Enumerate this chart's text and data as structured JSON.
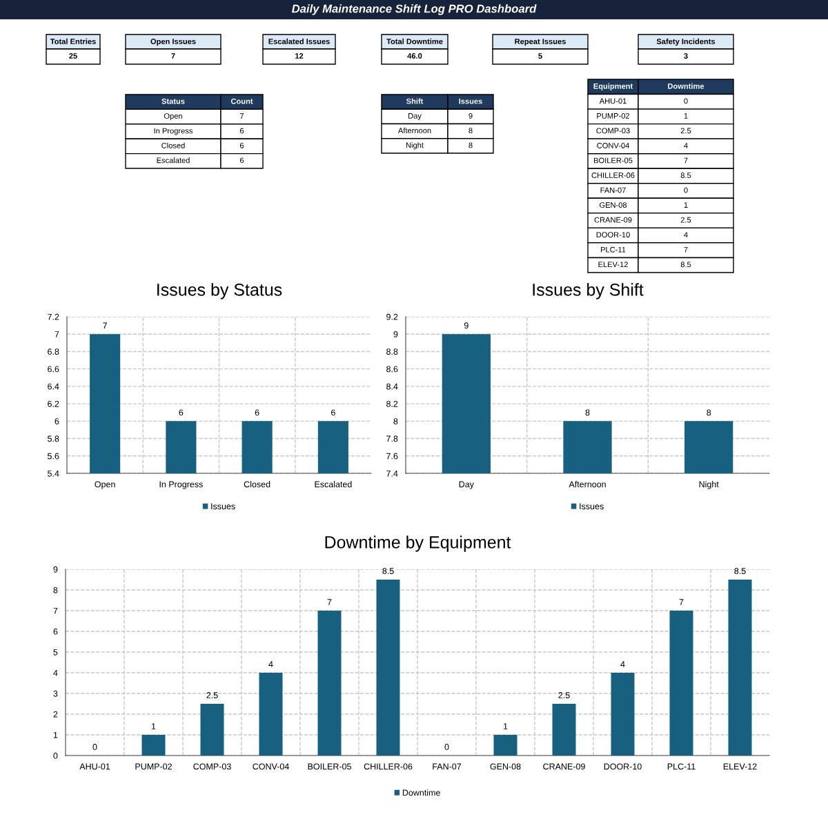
{
  "chart_data": [
    {
      "type": "other",
      "title": "Daily Maintenance Shift Log PRO Dashboard",
      "annotations": [
        "Total Entries",
        "25",
        "Open Issues",
        "7",
        "Escalated Issues",
        "12",
        "Total Downtime",
        "46.0",
        "Repeat Issues",
        "5",
        "Safety Incidents",
        "3"
      ]
    },
    {
      "type": "other",
      "annotations": [
        "Status",
        "Count",
        "Open",
        "7",
        "In Progress",
        "6",
        "Closed",
        "6",
        "Escalated",
        "6"
      ]
    },
    {
      "type": "other",
      "annotations": [
        "Shift",
        "Issues",
        "Day",
        "9",
        "Afternoon",
        "8",
        "Night",
        "8"
      ]
    },
    {
      "type": "other",
      "annotations": [
        "Equipment",
        "Downtime",
        "AHU-01",
        "0",
        "PUMP-02",
        "1",
        "COMP-03",
        "2.5",
        "CONV-04",
        "4",
        "BOILER-05",
        "7",
        "CHILLER-06",
        "8.5",
        "FAN-07",
        "0",
        "GEN-08",
        "1",
        "CRANE-09",
        "2.5",
        "DOOR-10",
        "4",
        "PLC-11",
        "7",
        "ELEV-12",
        "8.5"
      ]
    },
    {
      "type": "bar",
      "title": "Issues by Status",
      "categories": [
        "Open",
        "In Progress",
        "Closed",
        "Escalated"
      ],
      "series": [
        {
          "name": "Issues",
          "color": "#17607f",
          "values": [
            7,
            6,
            6,
            6
          ]
        }
      ],
      "ylim": [
        5.4,
        7.2
      ],
      "yticks": [
        5.4,
        5.6,
        5.8,
        6,
        6.2,
        6.4,
        6.6,
        6.8,
        7,
        7.2
      ],
      "grid": true,
      "legend": "bottom",
      "data_labels": true
    },
    {
      "type": "bar",
      "title": "Issues by Shift",
      "categories": [
        "Day",
        "Afternoon",
        "Night"
      ],
      "series": [
        {
          "name": "Issues",
          "color": "#17607f",
          "values": [
            9,
            8,
            8
          ]
        }
      ],
      "ylim": [
        7.4,
        9.2
      ],
      "yticks": [
        7.4,
        7.6,
        7.8,
        8,
        8.2,
        8.4,
        8.6,
        8.8,
        9,
        9.2
      ],
      "grid": true,
      "legend": "bottom",
      "data_labels": true
    },
    {
      "type": "bar",
      "title": "Downtime by Equipment",
      "categories": [
        "AHU-01",
        "PUMP-02",
        "COMP-03",
        "CONV-04",
        "BOILER-05",
        "CHILLER-06",
        "FAN-07",
        "GEN-08",
        "CRANE-09",
        "DOOR-10",
        "PLC-11",
        "ELEV-12"
      ],
      "series": [
        {
          "name": "Downtime",
          "color": "#17607f",
          "values": [
            0,
            1,
            2.5,
            4,
            7,
            8.5,
            0,
            1,
            2.5,
            4,
            7,
            8.5
          ]
        }
      ],
      "ylim": [
        0,
        9
      ],
      "yticks": [
        0,
        1,
        2,
        3,
        4,
        5,
        6,
        7,
        8,
        9
      ],
      "grid": true,
      "legend": "bottom",
      "data_labels": true
    }
  ]
}
